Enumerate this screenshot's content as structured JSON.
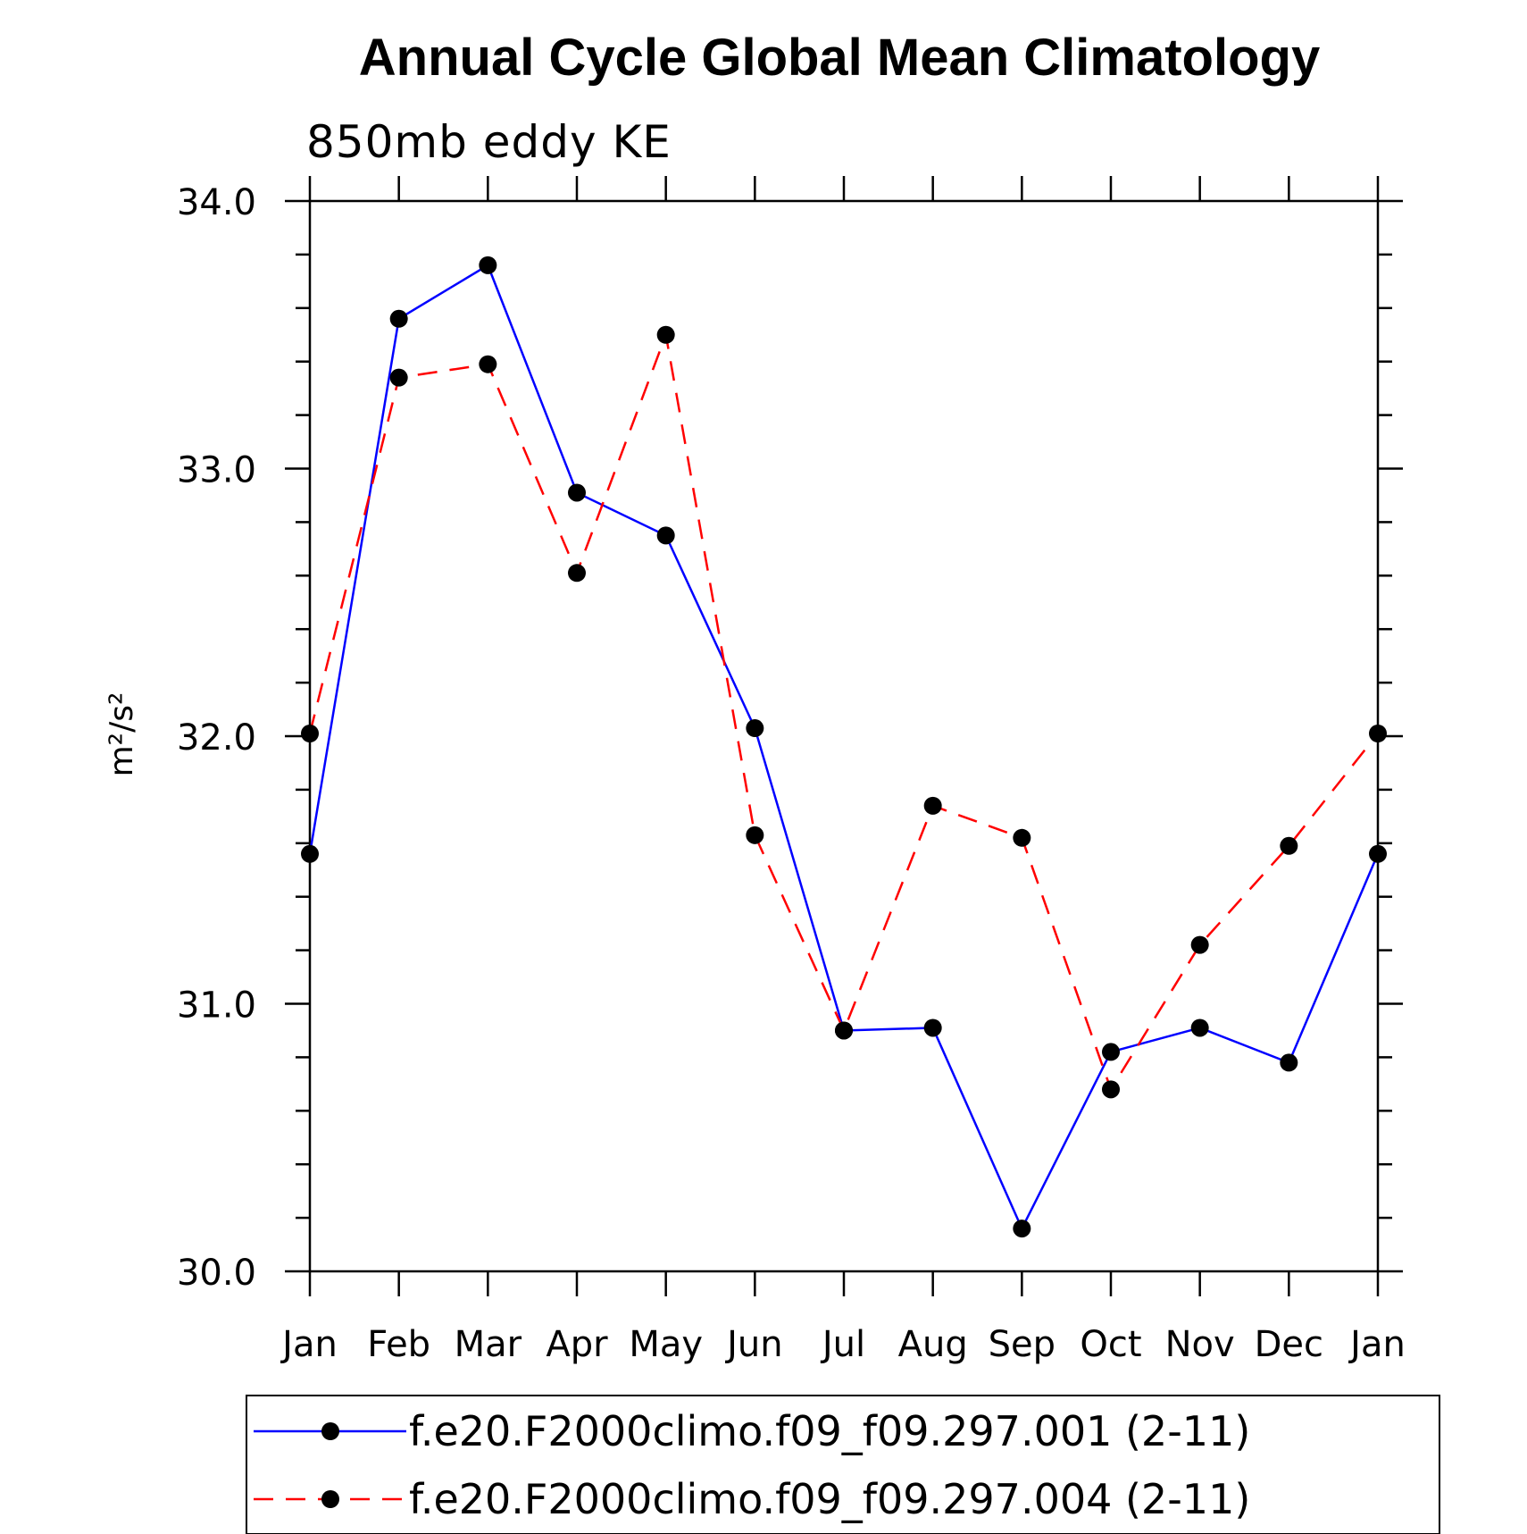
{
  "chart_data": {
    "type": "line",
    "title": "Annual Cycle Global Mean Climatology",
    "subtitle": "850mb eddy KE",
    "xlabel": "",
    "ylabel": "m²/s²",
    "categories": [
      "Jan",
      "Feb",
      "Mar",
      "Apr",
      "May",
      "Jun",
      "Jul",
      "Aug",
      "Sep",
      "Oct",
      "Nov",
      "Dec",
      "Jan"
    ],
    "ylim": [
      30.0,
      34.0
    ],
    "ytick_labels": [
      "30.0",
      "31.0",
      "32.0",
      "33.0",
      "34.0"
    ],
    "ytick_values": [
      30.0,
      31.0,
      32.0,
      33.0,
      34.0
    ],
    "grid": false,
    "legend_position": "bottom",
    "series": [
      {
        "name": "f.e20.F2000climo.f09_f09.297.001 (2-11)",
        "color": "#0000ff",
        "style": "solid",
        "marker_color": "#000000",
        "values": [
          31.56,
          33.56,
          33.76,
          32.91,
          32.75,
          32.03,
          30.9,
          30.91,
          30.16,
          30.82,
          30.91,
          30.78,
          31.56
        ]
      },
      {
        "name": "f.e20.F2000climo.f09_f09.297.004 (2-11)",
        "color": "#ff0000",
        "style": "dashed",
        "marker_color": "#000000",
        "values": [
          32.01,
          33.34,
          33.39,
          32.61,
          33.5,
          31.63,
          30.9,
          31.74,
          31.62,
          30.68,
          31.22,
          31.59,
          32.01
        ]
      }
    ]
  }
}
